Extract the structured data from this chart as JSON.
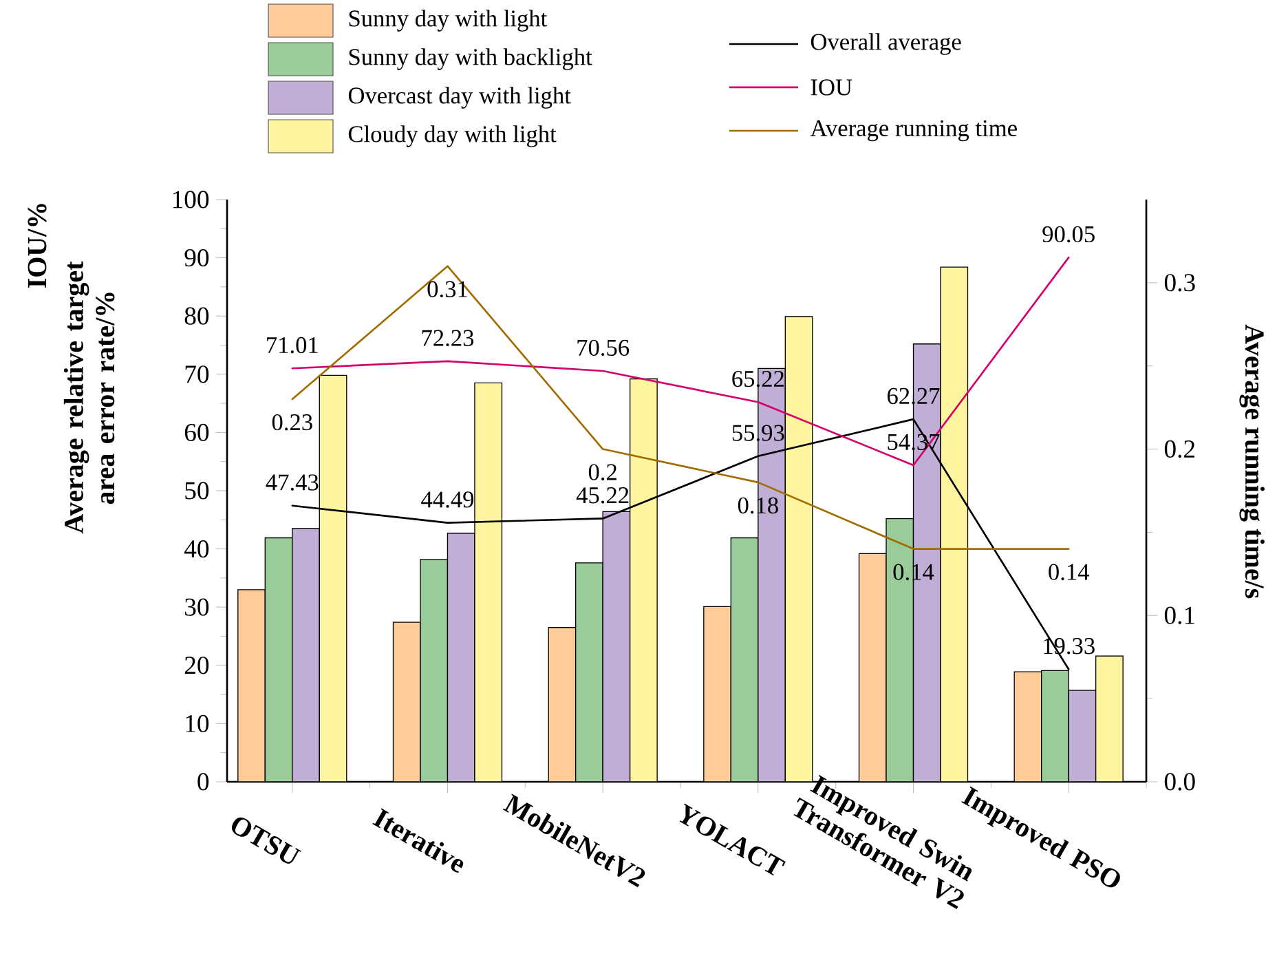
{
  "chart_data": {
    "type": "bar",
    "categories": [
      "OTSU",
      "Iterative",
      "MobileNetV2",
      "YOLACT",
      "Improved Swin Transformer V2",
      "Improved PSO"
    ],
    "ylabel": "Average relative target area error rate/%",
    "y2label": "Average running time/s",
    "annotations": [
      "IOU/%"
    ],
    "ylim": [
      0,
      100
    ],
    "yticks": [
      0,
      10,
      20,
      30,
      40,
      50,
      60,
      70,
      80,
      90,
      100
    ],
    "y2lim": [
      0,
      0.35
    ],
    "y2ticks": [
      {
        "value": 0,
        "label": "0.0"
      },
      0.1,
      0.2,
      0.3
    ],
    "legend": "top",
    "marker": "none",
    "series": [
      {
        "name": "Sunny day with light",
        "color": "#ffcc99",
        "values": [
          33.0,
          27.4,
          26.5,
          30.1,
          39.2,
          18.9
        ]
      },
      {
        "name": "Sunny day with backlight",
        "color": "#99cc99",
        "values": [
          41.9,
          38.2,
          37.6,
          41.9,
          45.2,
          19.1
        ]
      },
      {
        "name": "Overcast day with light",
        "color": "#c0aed6",
        "values": [
          43.5,
          42.7,
          46.4,
          71.0,
          75.2,
          15.7
        ]
      },
      {
        "name": "Cloudy day with light",
        "color": "#fff5a0",
        "values": [
          69.8,
          68.5,
          69.2,
          79.9,
          88.4,
          21.6
        ]
      },
      {
        "name": "Overall average",
        "type": "line",
        "color": "#000000",
        "values": [
          47.43,
          44.49,
          45.22,
          55.93,
          62.27,
          19.33
        ],
        "value_labels": [
          "47.43",
          "44.49",
          "45.22",
          "55.93",
          "62.27",
          "19.33"
        ]
      },
      {
        "name": "IOU",
        "type": "line",
        "color": "#d4006a",
        "values": [
          71.01,
          72.23,
          70.56,
          65.22,
          54.37,
          90.05
        ],
        "value_labels": [
          "71.01",
          "72.23",
          "70.56",
          "65.22",
          "54.37",
          "90.05"
        ]
      },
      {
        "name": "Average running time",
        "type": "line",
        "axis": "y2",
        "color": "#a06c00",
        "values": [
          0.23,
          0.31,
          0.2,
          0.18,
          0.14,
          0.14
        ],
        "value_labels": [
          "0.23",
          "0.31",
          "0.2",
          "0.18",
          "0.14",
          "0.14"
        ]
      }
    ]
  }
}
